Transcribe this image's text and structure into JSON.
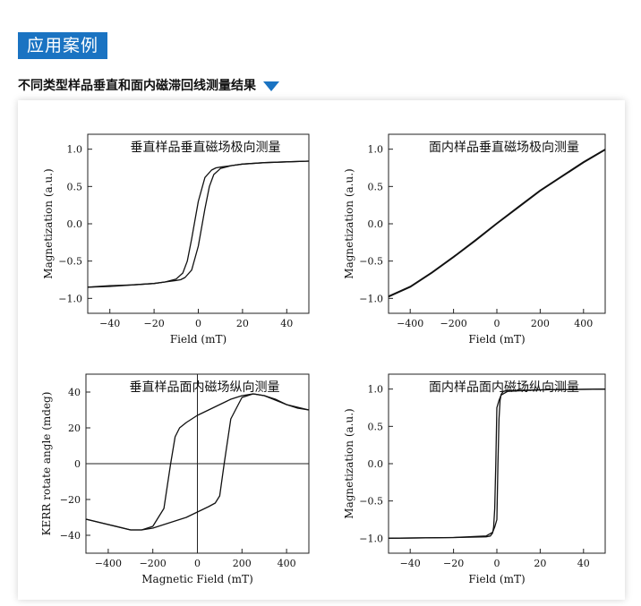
{
  "header": {
    "section_title": "应用案例",
    "subtitle": "不同类型样品垂直和面内磁滞回线测量结果"
  },
  "colors": {
    "accent": "#1a73c2",
    "curve": "#111111"
  },
  "chart_data": [
    {
      "type": "line",
      "title": "垂直样品垂直磁场极向测量",
      "xlabel": "Field (mT)",
      "ylabel": "Magnetization (a.u.)",
      "xlim": [
        -50,
        50
      ],
      "ylim": [
        -1.2,
        1.2
      ],
      "xticks": [
        -40,
        -20,
        0,
        20,
        40
      ],
      "yticks": [
        -1.0,
        -0.5,
        0.0,
        0.5,
        1.0
      ],
      "xtick_labels": [
        "−40",
        "−20",
        "0",
        "20",
        "40"
      ],
      "ytick_labels": [
        "−1.0",
        "−0.5",
        "0.0",
        "0.5",
        "1.0"
      ],
      "zero_lines": false,
      "series": [
        {
          "x": [
            -50,
            -40,
            -30,
            -20,
            -15,
            -10,
            -7,
            -5,
            -3,
            0,
            3,
            6,
            8,
            10,
            15,
            20,
            30,
            40,
            50
          ],
          "y": [
            -0.85,
            -0.84,
            -0.82,
            -0.8,
            -0.78,
            -0.74,
            -0.66,
            -0.5,
            -0.2,
            0.3,
            0.62,
            0.72,
            0.75,
            0.76,
            0.78,
            0.8,
            0.82,
            0.83,
            0.84
          ]
        },
        {
          "x": [
            50,
            40,
            30,
            20,
            15,
            10,
            7,
            5,
            3,
            0,
            -3,
            -6,
            -8,
            -10,
            -15,
            -20,
            -30,
            -40,
            -50
          ],
          "y": [
            0.84,
            0.83,
            0.82,
            0.8,
            0.78,
            0.74,
            0.66,
            0.5,
            0.2,
            -0.3,
            -0.62,
            -0.72,
            -0.75,
            -0.76,
            -0.78,
            -0.8,
            -0.82,
            -0.83,
            -0.85
          ]
        }
      ]
    },
    {
      "type": "line",
      "title": "面内样品垂直磁场极向测量",
      "xlabel": "Field (mT)",
      "ylabel": "Magnetization (a.u.)",
      "xlim": [
        -500,
        500
      ],
      "ylim": [
        -1.2,
        1.2
      ],
      "xticks": [
        -400,
        -200,
        0,
        200,
        400
      ],
      "yticks": [
        -1.0,
        -0.5,
        0.0,
        0.5,
        1.0
      ],
      "xtick_labels": [
        "−400",
        "−200",
        "0",
        "200",
        "400"
      ],
      "ytick_labels": [
        "−1.0",
        "−0.5",
        "0.0",
        "0.5",
        "1.0"
      ],
      "zero_lines": false,
      "series": [
        {
          "x": [
            -500,
            -400,
            -300,
            -200,
            -100,
            0,
            100,
            200,
            300,
            400,
            500
          ],
          "y": [
            -0.98,
            -0.85,
            -0.66,
            -0.45,
            -0.23,
            0.0,
            0.22,
            0.44,
            0.63,
            0.82,
            0.99
          ]
        },
        {
          "x": [
            -500,
            -400,
            -300,
            -200,
            -100,
            0,
            100,
            200,
            300,
            400,
            500
          ],
          "y": [
            -0.97,
            -0.84,
            -0.65,
            -0.44,
            -0.22,
            0.01,
            0.23,
            0.45,
            0.64,
            0.83,
            1.0
          ]
        }
      ]
    },
    {
      "type": "line",
      "title": "垂直样品面内磁场纵向测量",
      "xlabel": "Magnetic Field (mT)",
      "ylabel": "KERR rotate angle (mdeg)",
      "xlim": [
        -500,
        500
      ],
      "ylim": [
        -50,
        50
      ],
      "xticks": [
        -400,
        -200,
        0,
        200,
        400
      ],
      "yticks": [
        -40,
        -20,
        0,
        20,
        40
      ],
      "xtick_labels": [
        "−400",
        "−200",
        "0",
        "200",
        "400"
      ],
      "ytick_labels": [
        "−40",
        "−20",
        "0",
        "20",
        "40"
      ],
      "zero_lines": true,
      "series": [
        {
          "x": [
            -500,
            -400,
            -300,
            -250,
            -200,
            -150,
            -120,
            -100,
            -80,
            -50,
            0,
            50,
            100,
            150,
            200,
            250,
            300,
            350,
            400,
            450,
            500
          ],
          "y": [
            -31,
            -34,
            -37,
            -37,
            -35,
            -25,
            0,
            15,
            20,
            23,
            27,
            30,
            33,
            36,
            38,
            39,
            38,
            36,
            33,
            31,
            30
          ]
        },
        {
          "x": [
            500,
            400,
            300,
            250,
            200,
            150,
            120,
            100,
            80,
            50,
            0,
            -50,
            -100,
            -150,
            -200,
            -250,
            -300,
            -400,
            -500
          ],
          "y": [
            30,
            33,
            38,
            39,
            37,
            25,
            0,
            -18,
            -22,
            -24,
            -27,
            -30,
            -32,
            -34,
            -36,
            -37,
            -37,
            -34,
            -31
          ]
        }
      ]
    },
    {
      "type": "line",
      "title": "面内样品面内磁场纵向测量",
      "xlabel": "Field (mT)",
      "ylabel": "Magnetization (a.u.)",
      "xlim": [
        -50,
        50
      ],
      "ylim": [
        -1.2,
        1.2
      ],
      "xticks": [
        -40,
        -20,
        0,
        20,
        40
      ],
      "yticks": [
        -1.0,
        -0.5,
        0.0,
        0.5,
        1.0
      ],
      "xtick_labels": [
        "−40",
        "−20",
        "0",
        "20",
        "40"
      ],
      "ytick_labels": [
        "−1.0",
        "−0.5",
        "0.0",
        "0.5",
        "1.0"
      ],
      "zero_lines": false,
      "series": [
        {
          "x": [
            -50,
            -20,
            -5,
            -2,
            -1,
            0,
            0.5,
            1,
            1.5,
            2,
            3,
            5,
            20,
            50
          ],
          "y": [
            -1.0,
            -0.99,
            -0.97,
            -0.92,
            -0.85,
            -0.75,
            0.0,
            0.6,
            0.85,
            0.93,
            0.97,
            0.98,
            0.99,
            1.0
          ]
        },
        {
          "x": [
            50,
            20,
            5,
            2,
            1,
            0,
            -0.5,
            -1,
            -1.5,
            -2,
            -3,
            -5,
            -20,
            -50
          ],
          "y": [
            1.0,
            0.99,
            0.97,
            0.92,
            0.85,
            0.75,
            0.0,
            -0.6,
            -0.85,
            -0.93,
            -0.97,
            -0.98,
            -0.99,
            -1.0
          ]
        }
      ]
    }
  ]
}
